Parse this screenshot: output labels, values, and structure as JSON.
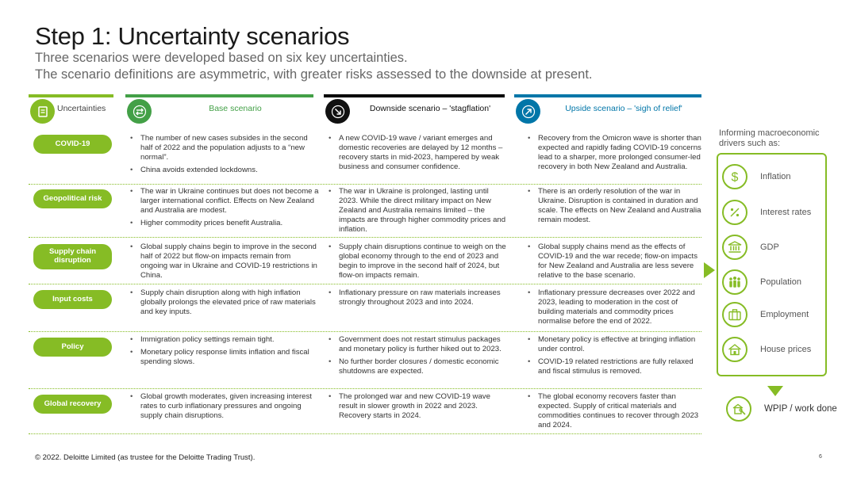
{
  "title": "Step 1: Uncertainty scenarios",
  "subtitle_line1": "Three scenarios were developed based on six key uncertainties.",
  "subtitle_line2": "The scenario definitions are asymmetric, with greater risks assessed to the downside at present.",
  "headers": {
    "uncertainties": "Uncertainties",
    "base": "Base scenario",
    "downside": "Downside scenario – 'stagflation'",
    "upside": "Upside scenario – 'sigh of relief'"
  },
  "colors": {
    "accent_green": "#86bc25",
    "base_green": "#43a047",
    "downside_black": "#111111",
    "upside_blue": "#0076a8"
  },
  "rows": [
    {
      "label": "COVID-19",
      "base": [
        "The number of new cases subsides in the second half of 2022 and the population adjusts to a “new normal”.",
        "China avoids extended lockdowns."
      ],
      "downside": [
        "A new COVID-19 wave / variant emerges and domestic recoveries are delayed by 12 months – recovery starts in mid-2023, hampered by weak business and consumer confidence."
      ],
      "upside": [
        "Recovery from the Omicron wave is shorter than expected and rapidly fading COVID-19 concerns lead to a sharper, more prolonged consumer-led recovery in both New Zealand and Australia."
      ]
    },
    {
      "label": "Geopolitical risk",
      "base": [
        "The war in Ukraine continues but does not become a larger international conflict. Effects on New Zealand and Australia are modest.",
        "Higher commodity prices benefit Australia."
      ],
      "downside": [
        "The war in Ukraine is prolonged, lasting until 2023. While the direct military impact on New Zealand and Australia remains limited – the impacts are through higher commodity prices and inflation."
      ],
      "upside": [
        "There is an orderly resolution of the war in Ukraine. Disruption is contained in duration and scale. The effects on New Zealand and Australia remain modest."
      ]
    },
    {
      "label": "Supply chain disruption",
      "base": [
        "Global supply chains begin to improve in the second half of 2022 but flow-on impacts remain from ongoing war in Ukraine and COVID-19 restrictions in China."
      ],
      "downside": [
        "Supply chain disruptions continue to weigh on the global economy through to the end of 2023 and begin to improve in the second half of 2024, but flow-on impacts remain."
      ],
      "upside": [
        "Global supply chains mend as the effects of COVID-19 and the war recede; flow-on impacts for New Zealand and Australia are less severe relative to the base scenario."
      ]
    },
    {
      "label": "Input costs",
      "base": [
        "Supply chain disruption along with high inflation globally prolongs the elevated price of raw materials and key inputs."
      ],
      "downside": [
        "Inflationary pressure on raw materials increases strongly throughout 2023 and into 2024."
      ],
      "upside": [
        "Inflationary pressure decreases over 2022 and 2023, leading to moderation in the cost of building materials and commodity prices normalise before the end of 2022."
      ]
    },
    {
      "label": "Policy",
      "base": [
        "Immigration policy settings remain tight.",
        "Monetary policy response limits inflation and fiscal spending slows."
      ],
      "downside": [
        "Government does not restart stimulus packages and monetary policy is further hiked out to 2023.",
        "No further border closures / domestic economic shutdowns are expected."
      ],
      "upside": [
        "Monetary policy is effective at bringing inflation under control.",
        "COVID-19 related restrictions are fully relaxed and fiscal stimulus is removed."
      ]
    },
    {
      "label": "Global recovery",
      "base": [
        "Global growth moderates, given increasing interest rates to curb inflationary pressures and ongoing supply chain disruptions."
      ],
      "downside": [
        "The prolonged war and new COVID-19 wave result in slower growth in 2022 and 2023. Recovery starts in 2024."
      ],
      "upside": [
        "The global economy recovers faster than expected. Supply of critical materials and commodities continues to recover through 2023 and 2024."
      ]
    }
  ],
  "drivers_heading": "Informing macroeconomic drivers such as:",
  "drivers": [
    {
      "label": "Inflation",
      "icon": "dollar-icon"
    },
    {
      "label": "Interest rates",
      "icon": "percent-icon"
    },
    {
      "label": "GDP",
      "icon": "bank-icon"
    },
    {
      "label": "Population",
      "icon": "people-icon"
    },
    {
      "label": "Employment",
      "icon": "briefcase-icon"
    },
    {
      "label": "House prices",
      "icon": "house-icon"
    }
  ],
  "wpip_label": "WPIP / work done",
  "footer": "© 2022. Deloitte Limited (as trustee for the Deloitte Trading Trust).",
  "page_number": "6"
}
